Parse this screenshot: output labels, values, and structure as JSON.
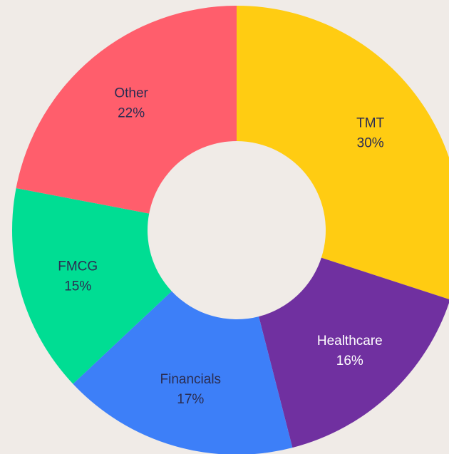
{
  "chart_data": {
    "type": "donut",
    "categories": [
      "TMT",
      "Healthcare",
      "Financials",
      "FMCG",
      "Other"
    ],
    "values": [
      30,
      16,
      17,
      15,
      22
    ],
    "value_labels": [
      "30%",
      "16%",
      "17%",
      "15%",
      "22%"
    ],
    "colors": [
      "#ffcc12",
      "#7030a0",
      "#3d7ff8",
      "#00dd93",
      "#ff5e6c"
    ],
    "label_colors": [
      "#2b2d52",
      "#ffffff",
      "#2b2d52",
      "#2b2d52",
      "#2b2d52"
    ]
  }
}
